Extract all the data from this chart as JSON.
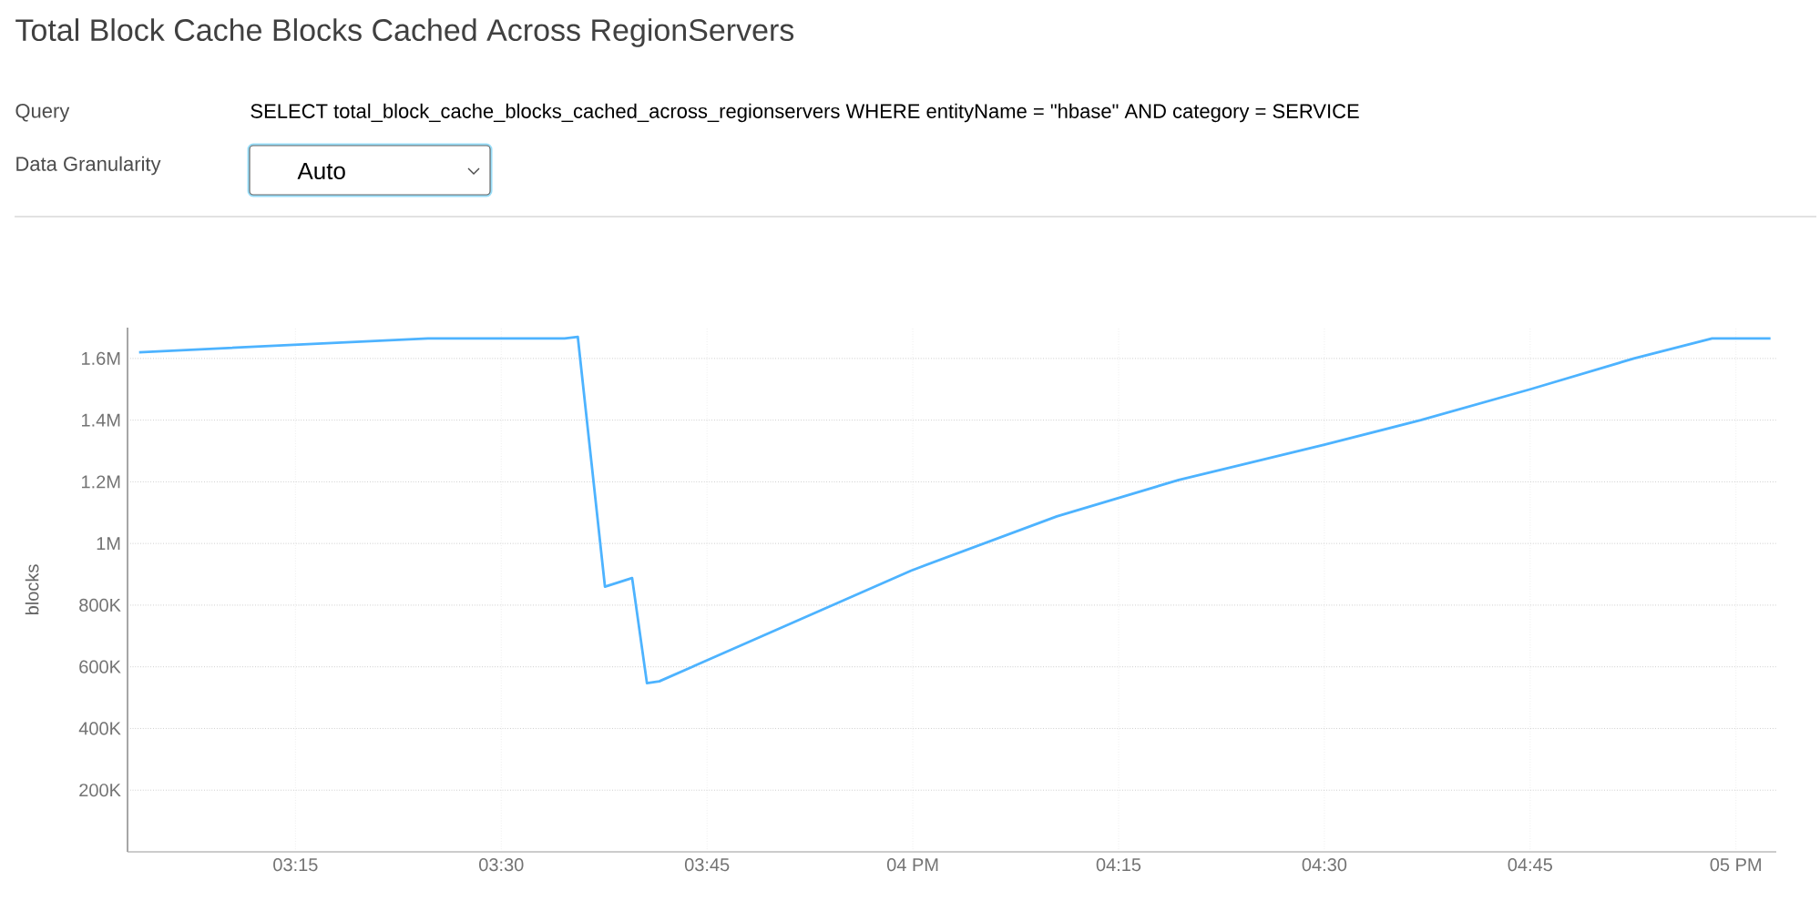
{
  "chart_data": {
    "type": "line",
    "title": "Total Block Cache Blocks Cached Across RegionServers",
    "annotations": [
      "Query",
      "SELECT total_block_cache_blocks_cached_across_regionservers WHERE entityName = \"hbase\" AND category = SERVICE",
      "Data Granularity",
      "Auto"
    ],
    "ylabel": "blocks",
    "x": [
      3.06,
      3.411,
      3.577,
      3.593,
      3.626,
      3.659,
      3.677,
      3.692,
      3.732,
      3.998,
      4.175,
      4.323,
      4.5,
      4.617,
      4.75,
      4.876,
      4.971,
      5.042
    ],
    "series": [
      {
        "color": "#4db3ff",
        "values": [
          1620000,
          1665000,
          1665000,
          1670000,
          860000,
          888000,
          547000,
          553000,
          600000,
          912000,
          1088000,
          1206000,
          1320000,
          1400000,
          1500000,
          1600000,
          1665000,
          1665000
        ]
      }
    ],
    "xlim": [
      3.046,
      5.049
    ],
    "xticks": [
      {
        "value": 3.25,
        "label": "03:15"
      },
      {
        "value": 3.5,
        "label": "03:30"
      },
      {
        "value": 3.75,
        "label": "03:45"
      },
      {
        "value": 4,
        "label": "04 PM"
      },
      {
        "value": 4.25,
        "label": "04:15"
      },
      {
        "value": 4.5,
        "label": "04:30"
      },
      {
        "value": 4.75,
        "label": "04:45"
      },
      {
        "value": 5,
        "label": "05 PM"
      }
    ],
    "ylim": [
      0,
      1700000
    ],
    "yticks": [
      {
        "value": 0,
        "label": null
      },
      {
        "value": 200000,
        "label": "200K"
      },
      {
        "value": 400000,
        "label": "400K"
      },
      {
        "value": 600000,
        "label": "600K"
      },
      {
        "value": 800000,
        "label": "800K"
      },
      {
        "value": 1000000,
        "label": "1M"
      },
      {
        "value": 1200000,
        "label": "1.2M"
      },
      {
        "value": 1400000,
        "label": "1.4M"
      },
      {
        "value": 1600000,
        "label": "1.6M"
      }
    ],
    "grid": true,
    "marker": "none",
    "line_style": "solid"
  }
}
